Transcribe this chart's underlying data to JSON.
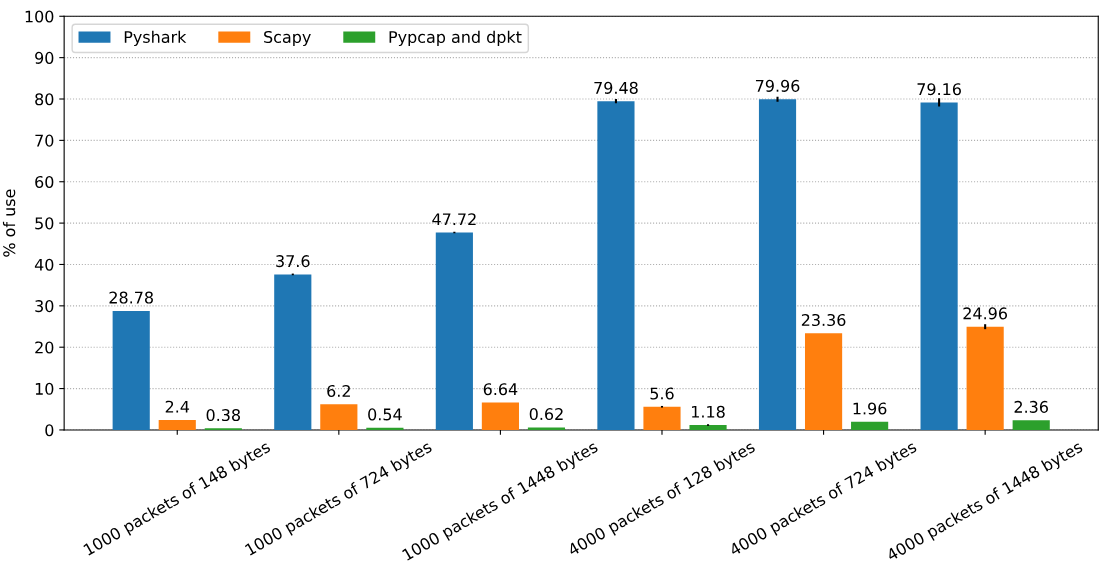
{
  "chart_data": {
    "type": "bar",
    "ylabel": "% of use",
    "categories": [
      "1000 packets of 148 bytes",
      "1000 packets of 724 bytes",
      "1000 packets of 1448 bytes",
      "4000 packets of 128 bytes",
      "4000 packets of 724 bytes",
      "4000 packets of 1448 bytes"
    ],
    "series": [
      {
        "name": "Pyshark",
        "color": "#1f77b4",
        "values": [
          28.78,
          37.6,
          47.72,
          79.48,
          79.96,
          79.16
        ],
        "errors": [
          null,
          0.2,
          0.2,
          0.5,
          0.6,
          1.0
        ]
      },
      {
        "name": "Scapy",
        "color": "#ff7f0e",
        "values": [
          2.4,
          6.2,
          6.64,
          5.6,
          23.36,
          24.96
        ],
        "errors": [
          null,
          null,
          null,
          0.2,
          null,
          0.6
        ]
      },
      {
        "name": "Pypcap and dpkt",
        "color": "#2ca02c",
        "values": [
          0.38,
          0.54,
          0.62,
          1.18,
          1.96,
          2.36
        ],
        "errors": [
          null,
          null,
          null,
          0.2,
          null,
          null
        ]
      }
    ],
    "ylim": [
      0,
      100
    ],
    "yticks": [
      0,
      10,
      20,
      30,
      40,
      50,
      60,
      70,
      80,
      90,
      100
    ],
    "data_labels": true,
    "grid": "y",
    "legend": "top left"
  }
}
